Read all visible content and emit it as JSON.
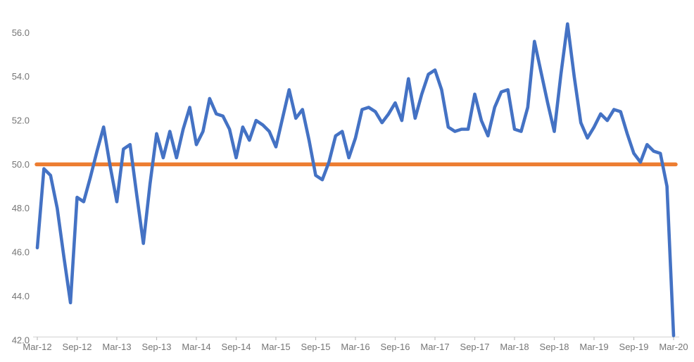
{
  "chart_data": {
    "type": "line",
    "title": "",
    "xlabel": "",
    "ylabel": "",
    "start_month": "Mar-12",
    "end_month": "Mar-20",
    "x_tick_labels": [
      "Mar-12",
      "Sep-12",
      "Mar-13",
      "Sep-13",
      "Mar-14",
      "Sep-14",
      "Mar-15",
      "Sep-15",
      "Mar-16",
      "Sep-16",
      "Mar-17",
      "Sep-17",
      "Mar-18",
      "Sep-18",
      "Mar-19",
      "Sep-19",
      "Mar-20"
    ],
    "y_tick_labels": [
      "42.0",
      "44.0",
      "46.0",
      "48.0",
      "50.0",
      "52.0",
      "54.0",
      "56.0"
    ],
    "ylim": [
      42.0,
      56.9
    ],
    "grid": "off",
    "legend": "none",
    "series": [
      {
        "name": "monthly-index",
        "color": "#4472C4",
        "values": [
          46.2,
          49.8,
          49.5,
          48.0,
          45.8,
          43.7,
          48.5,
          48.3,
          49.4,
          50.6,
          51.7,
          49.9,
          48.3,
          50.7,
          50.9,
          48.6,
          46.4,
          49.1,
          51.4,
          50.3,
          51.5,
          50.3,
          51.6,
          52.6,
          50.9,
          51.5,
          53.0,
          52.3,
          52.2,
          51.6,
          50.3,
          51.7,
          51.1,
          52.0,
          51.8,
          51.5,
          50.8,
          52.1,
          53.4,
          52.1,
          52.5,
          51.1,
          49.5,
          49.3,
          50.1,
          51.3,
          51.5,
          50.3,
          51.2,
          52.5,
          52.6,
          52.4,
          51.9,
          52.3,
          52.8,
          52.0,
          53.9,
          52.1,
          53.2,
          54.1,
          54.3,
          53.4,
          51.7,
          51.5,
          51.6,
          51.6,
          53.2,
          52.0,
          51.3,
          52.6,
          53.3,
          53.4,
          51.6,
          51.5,
          52.6,
          55.6,
          54.2,
          52.8,
          51.5,
          54.1,
          56.4,
          54.0,
          51.9,
          51.2,
          51.7,
          52.3,
          52.0,
          52.5,
          52.4,
          51.4,
          50.5,
          50.1,
          50.9,
          50.6,
          50.5,
          49.0,
          42.2
        ]
      },
      {
        "name": "reference-line-50",
        "color": "#ED7D31",
        "constant": 50.0
      }
    ]
  },
  "colors": {
    "background": "#FFFFFF",
    "series_line": "#4472C4",
    "reference_line": "#ED7D31",
    "axis_line": "#D9D9D9",
    "tick_mark": "#BFBFBF",
    "label_text": "#757575"
  }
}
